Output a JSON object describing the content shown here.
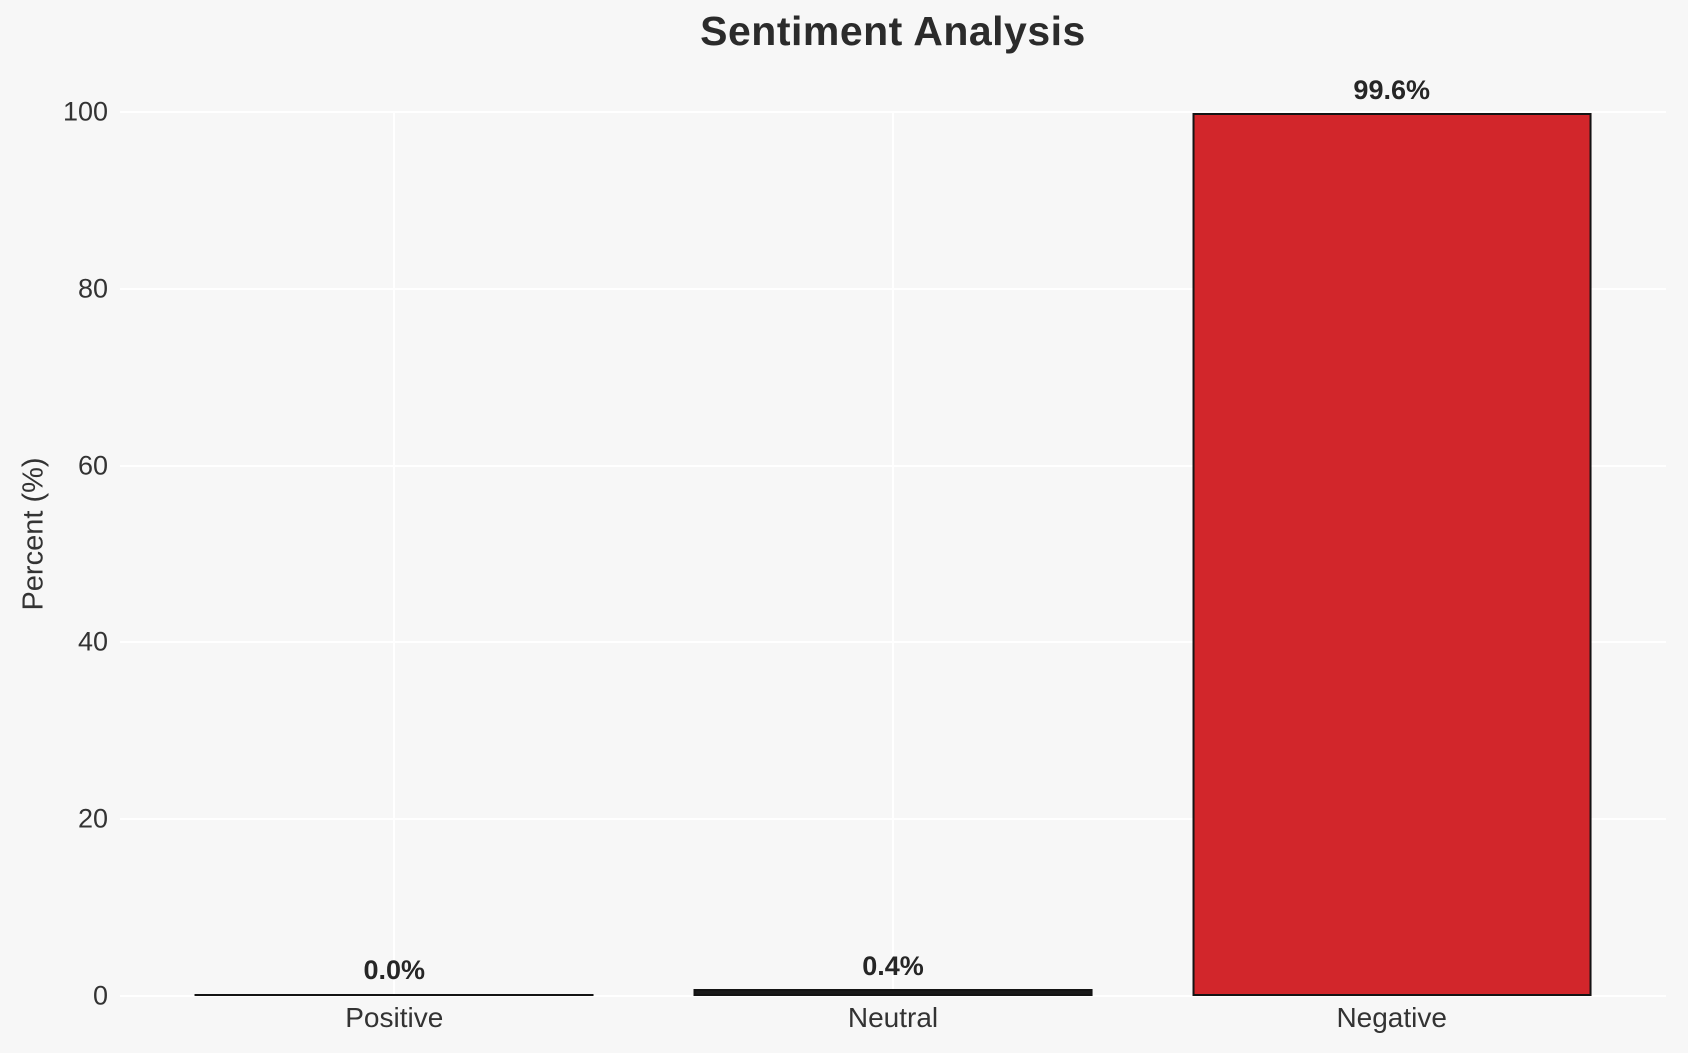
{
  "figure": {
    "background_color": "#f7f7f7",
    "grid_color": "#ffffff",
    "title_color": "#2b2b2b",
    "tick_color": "#333333"
  },
  "chart_data": {
    "type": "bar",
    "title": "Sentiment Analysis",
    "xlabel": "",
    "ylabel": "Percent (%)",
    "categories": [
      "Positive",
      "Neutral",
      "Negative"
    ],
    "values": [
      0.0,
      0.4,
      99.6
    ],
    "value_labels": [
      "0.0%",
      "0.4%",
      "99.6%"
    ],
    "bar_fill_colors": [
      "#1a1a1a",
      "#1a1a1a",
      "#d2262b"
    ],
    "bar_edge_color": "#141414",
    "ylim": [
      0,
      100
    ],
    "yticks": [
      0,
      20,
      40,
      60,
      80,
      100
    ],
    "grid": true,
    "legend": false
  }
}
